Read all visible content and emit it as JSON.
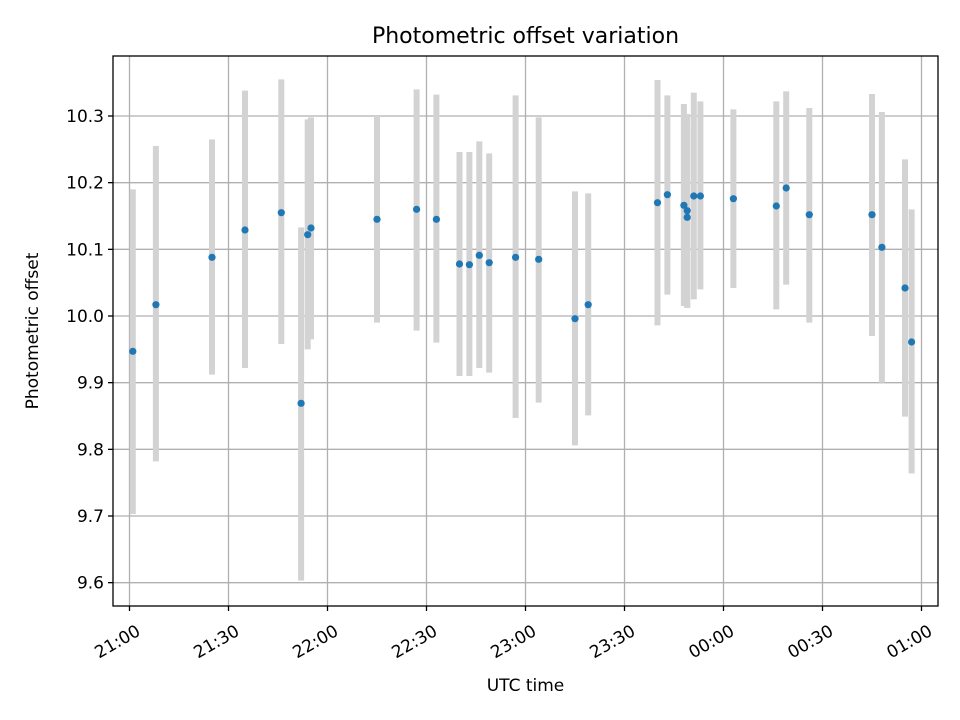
{
  "chart_data": {
    "type": "scatter",
    "title": "Photometric offset variation",
    "xlabel": "UTC time",
    "ylabel": "Photometric offset",
    "x_unit": "UTC time (HH:MM)",
    "xlim": [
      "20:55",
      "01:05"
    ],
    "ylim": [
      9.565,
      10.39
    ],
    "x_ticks": [
      "21:00",
      "21:30",
      "22:00",
      "22:30",
      "23:00",
      "23:30",
      "00:00",
      "00:30",
      "01:00"
    ],
    "y_ticks": [
      "9.6",
      "9.7",
      "9.8",
      "9.9",
      "10.0",
      "10.1",
      "10.2",
      "10.3"
    ],
    "grid": true,
    "error_bar_color": "#d3d3d3",
    "marker_color": "#1f77b4",
    "series": [
      {
        "points": [
          {
            "x": "21:01",
            "y": 9.947,
            "ylow": 9.703,
            "yhigh": 10.19
          },
          {
            "x": "21:08",
            "y": 10.017,
            "ylow": 9.782,
            "yhigh": 10.255
          },
          {
            "x": "21:25",
            "y": 10.088,
            "ylow": 9.912,
            "yhigh": 10.265
          },
          {
            "x": "21:35",
            "y": 10.129,
            "ylow": 9.922,
            "yhigh": 10.338
          },
          {
            "x": "21:46",
            "y": 10.155,
            "ylow": 9.958,
            "yhigh": 10.355
          },
          {
            "x": "21:52",
            "y": 9.869,
            "ylow": 9.603,
            "yhigh": 10.133
          },
          {
            "x": "21:54",
            "y": 10.122,
            "ylow": 9.95,
            "yhigh": 10.295
          },
          {
            "x": "21:55",
            "y": 10.132,
            "ylow": 9.965,
            "yhigh": 10.298
          },
          {
            "x": "22:15",
            "y": 10.145,
            "ylow": 9.99,
            "yhigh": 10.3
          },
          {
            "x": "22:27",
            "y": 10.16,
            "ylow": 9.978,
            "yhigh": 10.34
          },
          {
            "x": "22:33",
            "y": 10.145,
            "ylow": 9.96,
            "yhigh": 10.332
          },
          {
            "x": "22:40",
            "y": 10.078,
            "ylow": 9.91,
            "yhigh": 10.246
          },
          {
            "x": "22:43",
            "y": 10.077,
            "ylow": 9.91,
            "yhigh": 10.246
          },
          {
            "x": "22:46",
            "y": 10.091,
            "ylow": 9.922,
            "yhigh": 10.262
          },
          {
            "x": "22:49",
            "y": 10.08,
            "ylow": 9.915,
            "yhigh": 10.244
          },
          {
            "x": "22:57",
            "y": 10.088,
            "ylow": 9.847,
            "yhigh": 10.331
          },
          {
            "x": "23:04",
            "y": 10.085,
            "ylow": 9.87,
            "yhigh": 10.298
          },
          {
            "x": "23:15",
            "y": 9.996,
            "ylow": 9.806,
            "yhigh": 10.187
          },
          {
            "x": "23:19",
            "y": 10.017,
            "ylow": 9.851,
            "yhigh": 10.184
          },
          {
            "x": "23:40",
            "y": 10.17,
            "ylow": 9.986,
            "yhigh": 10.354
          },
          {
            "x": "23:43",
            "y": 10.182,
            "ylow": 10.032,
            "yhigh": 10.331
          },
          {
            "x": "23:48",
            "y": 10.166,
            "ylow": 10.015,
            "yhigh": 10.318
          },
          {
            "x": "23:49",
            "y": 10.158,
            "ylow": 10.013,
            "yhigh": 10.303
          },
          {
            "x": "23:49",
            "y": 10.148,
            "ylow": 10.012,
            "yhigh": 10.284
          },
          {
            "x": "23:51",
            "y": 10.18,
            "ylow": 10.025,
            "yhigh": 10.335
          },
          {
            "x": "23:53",
            "y": 10.18,
            "ylow": 10.04,
            "yhigh": 10.322
          },
          {
            "x": "00:03",
            "y": 10.176,
            "ylow": 10.042,
            "yhigh": 10.31
          },
          {
            "x": "00:16",
            "y": 10.165,
            "ylow": 10.01,
            "yhigh": 10.322
          },
          {
            "x": "00:19",
            "y": 10.192,
            "ylow": 10.047,
            "yhigh": 10.337
          },
          {
            "x": "00:26",
            "y": 10.152,
            "ylow": 9.99,
            "yhigh": 10.312
          },
          {
            "x": "00:45",
            "y": 10.152,
            "ylow": 9.97,
            "yhigh": 10.333
          },
          {
            "x": "00:48",
            "y": 10.103,
            "ylow": 9.9,
            "yhigh": 10.306
          },
          {
            "x": "00:55",
            "y": 10.042,
            "ylow": 9.849,
            "yhigh": 10.235
          },
          {
            "x": "00:57",
            "y": 9.961,
            "ylow": 9.764,
            "yhigh": 10.16
          }
        ]
      }
    ]
  }
}
